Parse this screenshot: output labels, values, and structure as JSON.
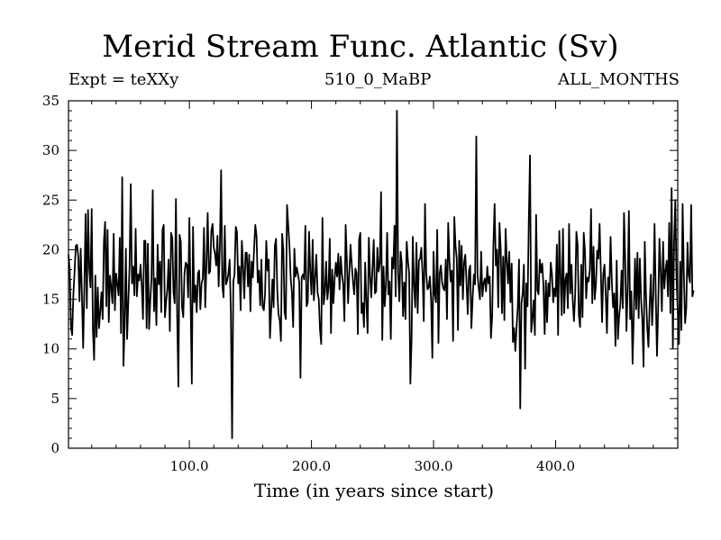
{
  "chart_data": {
    "type": "line",
    "title": "Merid Stream Func. Atlantic (Sv)",
    "subtitle_left": "Expt = teXXy",
    "subtitle_center": "510_0_MaBP",
    "subtitle_right": "ALL_MONTHS",
    "xlabel": "Time (in years since start)",
    "ylabel": "",
    "xlim": [
      1,
      500
    ],
    "ylim": [
      0,
      35
    ],
    "x_ticks": [
      100,
      200,
      300,
      400
    ],
    "x_tick_labels": [
      "100.0",
      "200.0",
      "300.0",
      "400.0"
    ],
    "y_ticks": [
      0,
      5,
      10,
      15,
      20,
      25,
      30,
      35
    ],
    "y_tick_labels": [
      "0",
      "5",
      "10",
      "15",
      "20",
      "25",
      "30",
      "35"
    ],
    "series": [
      {
        "color": "#000000",
        "x_start": 1,
        "x_step": 1,
        "values": [
          19.5,
          17.9,
          12.2,
          11.4,
          15.5,
          17.8,
          20.4,
          20.5,
          19.3,
          14.8,
          20.1,
          15.4,
          10.1,
          16.2,
          23.6,
          14.1,
          24.0,
          18.1,
          16.2,
          24.1,
          11.9,
          8.9,
          17.4,
          11.2,
          16.2,
          12.1,
          13.8,
          15.7,
          13.0,
          20.8,
          22.8,
          14.3,
          22.0,
          12.7,
          17.4,
          16.2,
          14.6,
          21.6,
          13.9,
          17.6,
          16.5,
          15.4,
          21.2,
          11.6,
          27.3,
          8.3,
          12.4,
          20.1,
          11.0,
          14.7,
          18.3,
          26.6,
          16.6,
          18.3,
          15.4,
          22.1,
          15.3,
          17.5,
          16.9,
          18.5,
          16.4,
          13.0,
          20.9,
          20.9,
          12.1,
          20.6,
          12.0,
          14.9,
          17.1,
          26.0,
          13.8,
          17.1,
          12.4,
          20.5,
          16.5,
          18.8,
          13.7,
          22.0,
          22.5,
          13.2,
          14.8,
          16.1,
          19.0,
          11.8,
          21.7,
          21.2,
          15.7,
          14.6,
          25.1,
          13.4,
          6.2,
          21.5,
          20.8,
          14.2,
          13.2,
          17.6,
          18.7,
          18.5,
          15.2,
          23.2,
          14.9,
          6.5,
          22.3,
          14.7,
          16.4,
          13.7,
          17.6,
          17.9,
          14.0,
          16.6,
          17.1,
          22.2,
          14.2,
          18.6,
          23.7,
          17.6,
          17.8,
          21.9,
          22.6,
          20.2,
          19.6,
          18.4,
          21.4,
          16.3,
          20.5,
          28.0,
          16.4,
          15.2,
          22.4,
          16.5,
          16.9,
          17.6,
          19.0,
          13.6,
          1.0,
          16.8,
          17.5,
          22.3,
          21.8,
          16.6,
          18.3,
          13.9,
          20.9,
          18.3,
          15.1,
          19.7,
          19.7,
          16.3,
          19.5,
          13.8,
          18.8,
          17.2,
          20.1,
          22.5,
          21.4,
          16.7,
          17.9,
          14.4,
          19.0,
          14.2,
          13.9,
          15.6,
          20.9,
          17.9,
          19.0,
          11.1,
          13.8,
          17.0,
          14.2,
          20.4,
          21.1,
          15.9,
          13.5,
          12.9,
          10.8,
          21.6,
          20.0,
          13.7,
          13.0,
          24.5,
          22.4,
          20.3,
          17.1,
          15.7,
          12.2,
          20.1,
          17.3,
          18.2,
          17.5,
          16.7,
          7.1,
          17.2,
          17.5,
          17.0,
          22.4,
          14.3,
          14.7,
          21.8,
          17.8,
          15.5,
          21.0,
          14.9,
          17.1,
          19.5,
          15.7,
          15.0,
          11.9,
          10.5,
          23.2,
          14.5,
          15.6,
          18.8,
          15.0,
          16.2,
          21.1,
          11.6,
          18.0,
          14.6,
          17.1,
          18.7,
          17.3,
          19.6,
          16.0,
          19.3,
          17.5,
          16.5,
          12.8,
          22.5,
          19.0,
          14.6,
          17.7,
          20.5,
          18.5,
          16.8,
          15.5,
          18.1,
          17.6,
          11.5,
          21.0,
          21.7,
          13.6,
          14.6,
          12.2,
          18.7,
          14.6,
          11.6,
          21.2,
          17.4,
          15.2,
          18.2,
          21.0,
          15.6,
          15.8,
          20.2,
          17.8,
          18.6,
          25.8,
          10.9,
          18.3,
          14.3,
          16.4,
          21.7,
          15.5,
          16.8,
          11.0,
          19.2,
          18.1,
          22.4,
          15.3,
          34.0,
          17.6,
          14.8,
          19.8,
          18.6,
          13.3,
          16.7,
          13.0,
          20.8,
          18.9,
          17.7,
          6.5,
          10.9,
          21.3,
          16.4,
          14.2,
          20.7,
          13.6,
          18.9,
          19.1,
          20.2,
          17.5,
          12.8,
          24.6,
          17.6,
          16.0,
          16.2,
          17.3,
          14.9,
          9.1,
          19.8,
          15.5,
          14.7,
          22.0,
          10.6,
          17.6,
          18.4,
          16.7,
          16.1,
          15.9,
          19.0,
          13.0,
          22.7,
          18.9,
          16.8,
          17.9,
          10.8,
          23.3,
          20.4,
          19.1,
          11.9,
          20.9,
          16.4,
          20.4,
          15.0,
          18.7,
          19.5,
          16.7,
          13.5,
          17.9,
          18.4,
          12.1,
          15.1,
          17.5,
          16.5,
          31.4,
          17.5,
          16.1,
          15.0,
          19.8,
          15.3,
          16.6,
          17.1,
          15.8,
          18.3,
          16.6,
          17.3,
          11.1,
          13.3,
          20.4,
          24.6,
          18.4,
          20.0,
          14.2,
          22.7,
          20.1,
          13.6,
          19.3,
          12.9,
          22.1,
          19.0,
          16.6,
          19.8,
          14.7,
          18.6,
          10.7,
          12.1,
          9.8,
          12.2,
          14.3,
          19.0,
          4.0,
          14.6,
          15.6,
          18.5,
          8.0,
          16.6,
          14.3,
          22.9,
          29.5,
          11.7,
          13.0,
          14.9,
          11.4,
          23.5,
          15.9,
          15.5,
          19.0,
          17.7,
          18.6,
          16.4,
          11.5,
          16.9,
          12.7,
          16.6,
          15.3,
          18.7,
          17.5,
          14.7,
          16.1,
          15.3,
          20.5,
          11.4,
          21.9,
          17.3,
          13.4,
          22.1,
          13.6,
          17.0,
          17.6,
          14.1,
          22.6,
          15.6,
          18.5,
          14.9,
          12.8,
          15.5,
          21.8,
          20.5,
          13.4,
          12.2,
          18.5,
          13.2,
          21.7,
          19.9,
          15.1,
          17.2,
          16.8,
          18.0,
          24.1,
          14.6,
          20.3,
          15.0,
          16.5,
          19.9,
          19.1,
          22.6,
          17.8,
          12.7,
          17.5,
          18.5,
          15.6,
          11.6,
          17.2,
          16.0,
          21.3,
          16.8,
          14.2,
          15.6,
          10.3,
          18.9,
          11.0,
          13.3,
          14.5,
          17.9,
          14.1,
          23.7,
          18.8,
          11.8,
          16.0,
          23.9,
          13.0,
          15.8,
          8.5,
          13.4,
          19.1,
          14.0,
          19.7,
          13.1,
          19.1,
          14.9,
          12.9,
          8.2,
          20.8,
          15.5,
          12.2,
          10.2,
          14.4,
          17.5,
          12.4,
          15.4,
          22.6,
          15.4,
          9.3,
          14.2,
          21.1,
          17.9,
          13.8,
          20.8,
          16.1,
          17.9,
          18.9,
          15.3,
          22.7,
          13.6,
          26.2,
          10.1,
          20.7,
          25.0,
          17.1,
          13.8,
          10.5,
          18.8,
          11.9,
          24.6,
          17.7,
          12.6,
          14.1,
          20.7,
          17.4,
          16.7,
          24.5,
          15.3,
          15.9
        ]
      }
    ]
  }
}
